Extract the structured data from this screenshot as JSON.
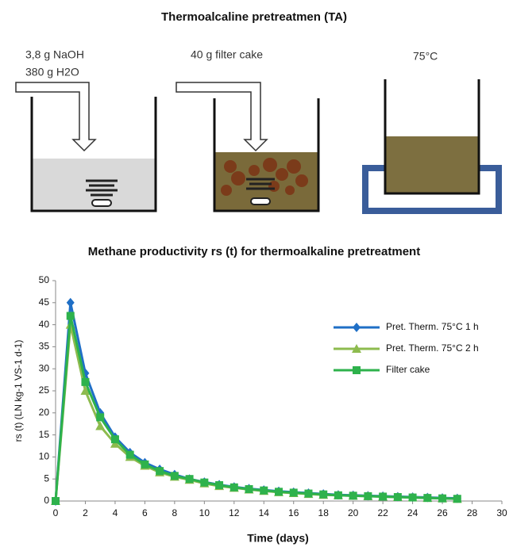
{
  "diagram": {
    "title": "Thermoalcaline pretreatmen (TA)",
    "labels": [
      "3,8 g NaOH",
      "380 g H2O",
      "40 g filter cake",
      "75°C"
    ]
  },
  "chart_data": {
    "type": "line",
    "title": "Methane productivity rs (t) for thermoalkaline pretreatment",
    "x_label": "Time (days)",
    "y_label": "rs (t) (LN kg-1 VS-1 d-1)",
    "x": [
      0,
      1,
      2,
      3,
      4,
      5,
      6,
      7,
      8,
      9,
      10,
      11,
      12,
      13,
      14,
      15,
      16,
      17,
      18,
      19,
      20,
      21,
      22,
      23,
      24,
      25,
      26,
      27
    ],
    "series": [
      {
        "name": "Pret. Therm. 75°C 1 h",
        "color": "#1f6fc6",
        "marker": "diamond",
        "values": [
          0,
          45,
          29,
          20,
          14.5,
          11,
          8.7,
          7.2,
          6,
          5,
          4.3,
          3.7,
          3.2,
          2.8,
          2.5,
          2.2,
          2,
          1.8,
          1.6,
          1.4,
          1.3,
          1.2,
          1.1,
          1,
          0.9,
          0.8,
          0.7,
          0.6
        ]
      },
      {
        "name": "Pret. Therm. 75°C 2 h",
        "color": "#8dbb4e",
        "marker": "triangle",
        "values": [
          0,
          40,
          25,
          17,
          13,
          10,
          8,
          6.5,
          5.5,
          4.8,
          4,
          3.4,
          3,
          2.6,
          2.3,
          2,
          1.8,
          1.6,
          1.4,
          1.3,
          1.2,
          1.1,
          1,
          0.9,
          0.8,
          0.7,
          0.6,
          0.5
        ]
      },
      {
        "name": "Filter cake",
        "color": "#2eb24c",
        "marker": "square",
        "values": [
          0,
          42,
          27,
          19,
          14,
          10.5,
          8.3,
          6.8,
          5.7,
          5,
          4.2,
          3.6,
          3.1,
          2.7,
          2.4,
          2.1,
          1.9,
          1.7,
          1.5,
          1.3,
          1.2,
          1.1,
          1,
          0.9,
          0.8,
          0.7,
          0.6,
          0.5
        ]
      }
    ],
    "xlim": [
      0,
      30
    ],
    "xticks": [
      0,
      2,
      4,
      6,
      8,
      10,
      12,
      14,
      16,
      18,
      20,
      22,
      24,
      26,
      28,
      30
    ],
    "ylim": [
      0,
      50
    ],
    "yticks": [
      0,
      5,
      10,
      15,
      20,
      25,
      30,
      35,
      40,
      45,
      50
    ],
    "legend": "upper right"
  }
}
